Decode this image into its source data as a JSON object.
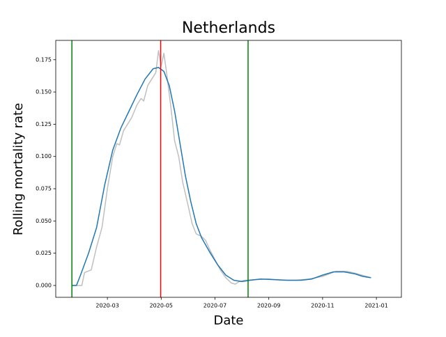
{
  "chart_data": {
    "type": "line",
    "title": "Netherlands",
    "xlabel": "Date",
    "ylabel": "Rolling mortality rate",
    "xlim": [
      0.08,
      12.93
    ],
    "ylim": [
      -0.0092,
      0.19
    ],
    "xticks": [
      {
        "value": 2,
        "label": "2020-03"
      },
      {
        "value": 4,
        "label": "2020-05"
      },
      {
        "value": 6,
        "label": "2020-07"
      },
      {
        "value": 8,
        "label": "2020-09"
      },
      {
        "value": 10,
        "label": "2020-11"
      },
      {
        "value": 12,
        "label": "2021-01"
      }
    ],
    "yticks": [
      {
        "value": 0,
        "label": "0.000"
      },
      {
        "value": 0.025,
        "label": "0.025"
      },
      {
        "value": 0.05,
        "label": "0.050"
      },
      {
        "value": 0.075,
        "label": "0.075"
      },
      {
        "value": 0.1,
        "label": "0.100"
      },
      {
        "value": 0.125,
        "label": "0.125"
      },
      {
        "value": 0.15,
        "label": "0.150"
      },
      {
        "value": 0.175,
        "label": "0.175"
      }
    ],
    "series": [
      {
        "color": "#bfbfbf",
        "x": [
          0.68,
          1.05,
          1.15,
          1.4,
          1.6,
          1.8,
          2.0,
          2.2,
          2.35,
          2.45,
          2.6,
          2.9,
          3.1,
          3.25,
          3.35,
          3.5,
          3.65,
          3.8,
          3.9,
          4.0,
          4.1,
          4.2,
          4.35,
          4.5,
          4.65,
          4.8,
          5.0,
          5.15,
          5.3,
          5.5,
          5.65,
          5.8,
          6.0,
          6.2,
          6.4,
          6.6,
          6.75,
          6.9,
          7.1,
          7.5,
          8.0,
          8.5,
          9.0,
          9.5,
          10.0,
          10.5,
          10.9,
          11.3,
          11.8
        ],
        "values": [
          0,
          0,
          0.01,
          0.012,
          0.03,
          0.045,
          0.075,
          0.1,
          0.11,
          0.109,
          0.12,
          0.13,
          0.14,
          0.145,
          0.143,
          0.155,
          0.16,
          0.165,
          0.182,
          0.17,
          0.18,
          0.165,
          0.14,
          0.112,
          0.1,
          0.08,
          0.062,
          0.048,
          0.04,
          0.038,
          0.035,
          0.028,
          0.02,
          0.012,
          0.006,
          0.002,
          0.001,
          0.003,
          0.004,
          0.0045,
          0.005,
          0.004,
          0.004,
          0.005,
          0.007,
          0.011,
          0.011,
          0.009,
          0.006
        ]
      },
      {
        "color": "#1f77b4",
        "x": [
          0.68,
          0.85,
          1.0,
          1.3,
          1.6,
          1.9,
          2.2,
          2.5,
          2.8,
          3.1,
          3.4,
          3.7,
          3.9,
          4.1,
          4.3,
          4.5,
          4.7,
          4.9,
          5.1,
          5.3,
          5.5,
          5.8,
          6.1,
          6.4,
          6.7,
          7.0,
          7.3,
          7.7,
          8.2,
          8.7,
          9.2,
          9.6,
          10.0,
          10.4,
          10.8,
          11.2,
          11.5,
          11.8
        ],
        "values": [
          0,
          0,
          0.008,
          0.025,
          0.045,
          0.078,
          0.105,
          0.122,
          0.135,
          0.148,
          0.16,
          0.168,
          0.169,
          0.166,
          0.155,
          0.135,
          0.11,
          0.085,
          0.065,
          0.048,
          0.037,
          0.026,
          0.016,
          0.008,
          0.004,
          0.003,
          0.004,
          0.005,
          0.0045,
          0.004,
          0.004,
          0.005,
          0.008,
          0.0105,
          0.0105,
          0.009,
          0.007,
          0.006
        ]
      }
    ],
    "vlines": [
      {
        "x": 0.68,
        "color": "green"
      },
      {
        "x": 3.98,
        "color": "red"
      },
      {
        "x": 7.23,
        "color": "green"
      }
    ]
  }
}
